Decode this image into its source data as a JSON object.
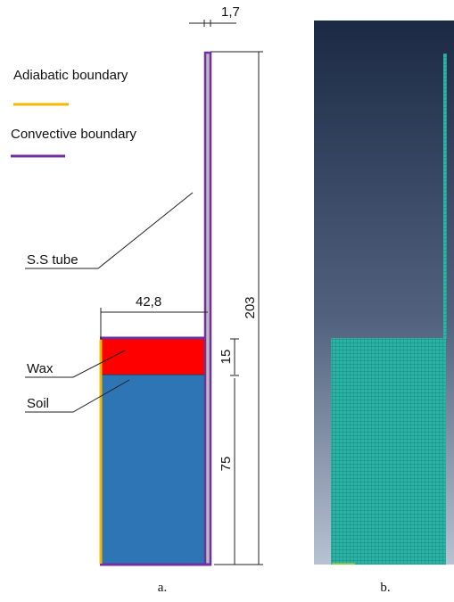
{
  "dimensions": {
    "tube_thickness": "1,7",
    "width": "42,8",
    "total_height": "203",
    "wax_height": "15",
    "soil_height": "75"
  },
  "legend": {
    "adiabatic": "Adiabatic boundary",
    "convective": "Convective boundary"
  },
  "labels": {
    "tube": "S.S tube",
    "wax": "Wax",
    "soil": "Soil"
  },
  "captions": {
    "a": "a.",
    "b": "b."
  }
}
